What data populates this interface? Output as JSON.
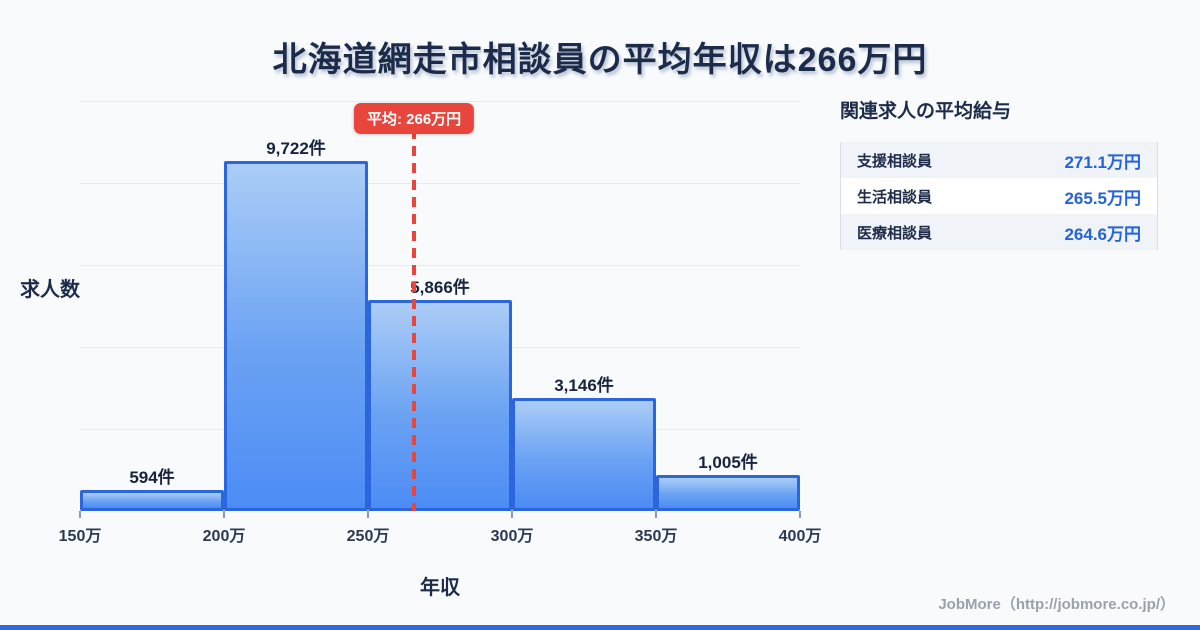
{
  "page": {
    "title": "北海道網走市相談員の平均年収は266万円",
    "footer_credit": "JobMore（http://jobmore.co.jp/）"
  },
  "chart_data": {
    "type": "bar",
    "title": "北海道網走市相談員の平均年収は266万円",
    "xlabel": "年収",
    "ylabel": "求人数",
    "x_unit": "万円",
    "bin_edges": [
      150,
      200,
      250,
      300,
      350,
      400
    ],
    "x_tick_labels": [
      "150万",
      "200万",
      "250万",
      "300万",
      "350万",
      "400万"
    ],
    "categories": [
      "150万-200万",
      "200万-250万",
      "250万-300万",
      "300万-350万",
      "350万-400万"
    ],
    "values": [
      594,
      9722,
      5866,
      3146,
      1005
    ],
    "bar_labels": [
      "594件",
      "9,722件",
      "5,866件",
      "3,146件",
      "1,005件"
    ],
    "average_line": {
      "label": "平均: 266万円",
      "value": 266,
      "color": "#e8463c"
    },
    "ylim": [
      0,
      11400
    ],
    "xlim": [
      150,
      400
    ],
    "grid": true,
    "gridline_count": 5,
    "legend": "none",
    "colors": {
      "bar_fill_top": "#abcdf7",
      "bar_fill_bottom": "#4c8cf5",
      "bar_border": "#2b66dd",
      "average_red": "#e8463c",
      "title_navy": "#1d2b4a",
      "background": "#f8fafc"
    }
  },
  "related_panel": {
    "heading": "関連求人の平均給与",
    "value_color": "#2563d9",
    "rows": [
      {
        "label": "支援相談員",
        "value": "271.1万円"
      },
      {
        "label": "生活相談員",
        "value": "265.5万円"
      },
      {
        "label": "医療相談員",
        "value": "264.6万円"
      }
    ]
  }
}
